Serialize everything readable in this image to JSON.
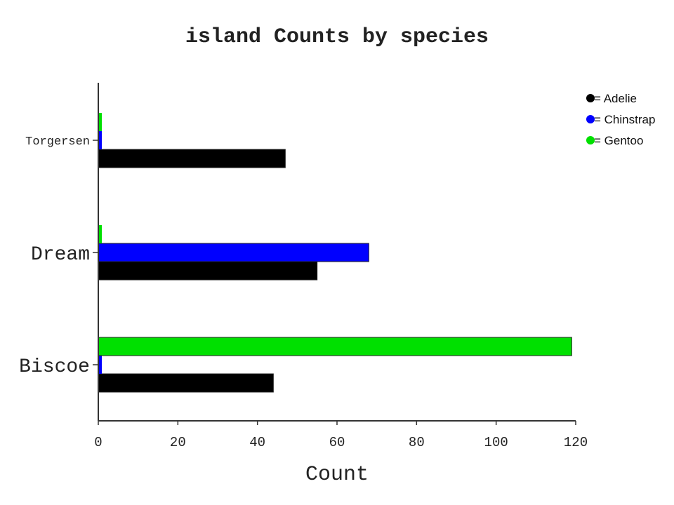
{
  "chart_data": {
    "type": "bar",
    "orientation": "horizontal",
    "title": "island Counts by species",
    "xlabel": "Count",
    "ylabel": "",
    "xlim": [
      0,
      120
    ],
    "xticks": [
      "0",
      "20",
      "40",
      "60",
      "80",
      "100",
      "120"
    ],
    "categories": [
      "Torgersen",
      "Dream",
      "Biscoe"
    ],
    "series": [
      {
        "name": "Adelie",
        "color": "#000000",
        "values": [
          47,
          55,
          44
        ]
      },
      {
        "name": "Chinstrap",
        "color": "#0000ff",
        "values": [
          0,
          68,
          0
        ]
      },
      {
        "name": "Gentoo",
        "color": "#00e000",
        "values": [
          0,
          0,
          119
        ]
      }
    ],
    "legend_placement": "top-right",
    "grid": false
  }
}
